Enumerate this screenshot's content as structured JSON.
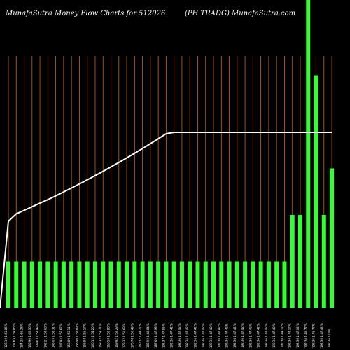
{
  "header": {
    "title_left": "MunafaSutra  Money Flow  Charts for 512026",
    "title_right": "(PH TRADG) MunafaSutra.com"
  },
  "colors": {
    "background": "#000000",
    "bar": "#33ff33",
    "grid": "#cc6600",
    "line": "#ffffff",
    "text": "#ffffff"
  },
  "chart_data": {
    "type": "bar",
    "title": "MunafaSutra  Money Flow  Charts for 512026",
    "subtitle": "(PH TRADG) MunafaSutra.com",
    "grid": true,
    "grid_orientation": "vertical",
    "categories": [
      "126.10  1(61.86%)",
      "131.63  1(59.86%)",
      "134.25  1(61.28%)",
      "136.90  1(60.30%)",
      "139.63  1(58.93%)",
      "142.21  1(58.68%)",
      "145.03  1(58.31%)",
      "147.93  1(56.67%)",
      "150.89  1(56.11%)",
      "153.90  1(55.89%)",
      "156.98  1(55.17%)",
      "160.12  1(54.20%)",
      "163.32  1(53.21%)",
      "166.59  1(52.83%)",
      "169.92  1(52.23%)",
      "173.32  1(51.63%)",
      "176.78  1(50.49%)",
      "180.32  1(49.72%)",
      "183.92  1(48.84%)",
      "187.60  1(47.93%)",
      "191.37  1(47.55%)",
      "192.36  1(47.42%)",
      "192.36  1(47.42%)",
      "192.36  1(47.42%)",
      "192.36  1(47.42%)",
      "192.36  1(47.42%)",
      "192.36  1(47.42%)",
      "192.36  1(47.42%)",
      "192.36  1(47.42%)",
      "192.36  1(47.42%)",
      "192.36  1(47.42%)",
      "192.36  1(47.42%)",
      "192.36  1(47.42%)",
      "192.36  1(47.42%)",
      "192.36  1(47.42%)",
      "192.36  1(44.17%)",
      "192.36  1(44.17%)",
      "192.36  1(47.02%)",
      "192.36  1(45.77%)",
      "192.36  1(45.77%)",
      "192.36  1(47.42%)",
      "192.36  1(0%)"
    ],
    "series": [
      {
        "type": "bar",
        "values": [
          1,
          1,
          1,
          1,
          1,
          1,
          1,
          1,
          1,
          1,
          1,
          1,
          1,
          1,
          1,
          1,
          1,
          1,
          1,
          1,
          1,
          1,
          1,
          1,
          1,
          1,
          1,
          1,
          1,
          1,
          1,
          1,
          1,
          1,
          1,
          1,
          2,
          2,
          7,
          5,
          2,
          3
        ]
      },
      {
        "type": "line",
        "values": [
          126.1,
          131.63,
          134.25,
          136.9,
          139.63,
          142.21,
          145.03,
          147.93,
          150.89,
          153.9,
          156.98,
          160.12,
          163.32,
          166.59,
          169.92,
          173.32,
          176.78,
          180.32,
          183.92,
          187.6,
          191.37,
          192.36,
          192.36,
          192.36,
          192.36,
          192.36,
          192.36,
          192.36,
          192.36,
          192.36,
          192.36,
          192.36,
          192.36,
          192.36,
          192.36,
          192.36,
          192.36,
          192.36,
          192.36,
          192.36,
          192.36,
          192.36
        ]
      }
    ]
  }
}
